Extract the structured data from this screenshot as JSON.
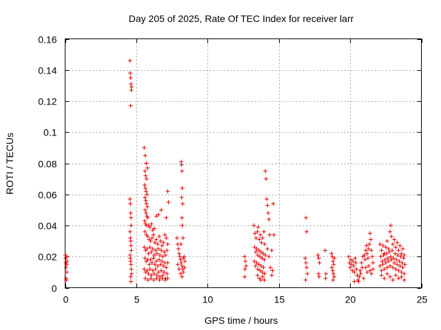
{
  "chart_data": {
    "type": "scatter",
    "title": "Day 205 of 2025, Rate Of TEC Index for receiver larr",
    "xlabel": "GPS time / hours",
    "ylabel": "ROTI / TECUs",
    "xlim": [
      0,
      25
    ],
    "ylim": [
      0,
      0.16
    ],
    "xticks": [
      0,
      5,
      10,
      15,
      20,
      25
    ],
    "yticks": [
      0,
      0.02,
      0.04,
      0.06,
      0.08,
      0.1,
      0.12,
      0.14,
      0.16
    ],
    "xtick_labels": [
      "0",
      "5",
      "10",
      "15",
      "20",
      "25"
    ],
    "ytick_labels": [
      "0",
      "0.02",
      "0.04",
      "0.06",
      "0.08",
      "0.1",
      "0.12",
      "0.14",
      "0.16"
    ],
    "grid": true,
    "marker": "+",
    "marker_color": "#e00000",
    "points": [
      [
        0.02,
        0.021
      ],
      [
        0.04,
        0.019
      ],
      [
        0.05,
        0.016
      ],
      [
        0.06,
        0.013
      ],
      [
        0.07,
        0.006
      ],
      [
        0.09,
        0.005
      ],
      [
        0.1,
        0.015
      ],
      [
        0.11,
        0.02
      ],
      [
        0.12,
        0.01
      ],
      [
        0.13,
        0.017
      ],
      [
        4.55,
        0.146
      ],
      [
        4.57,
        0.138
      ],
      [
        4.6,
        0.135
      ],
      [
        4.62,
        0.131
      ],
      [
        4.64,
        0.127
      ],
      [
        4.66,
        0.129
      ],
      [
        4.6,
        0.117
      ],
      [
        4.55,
        0.057
      ],
      [
        4.58,
        0.054
      ],
      [
        4.6,
        0.048
      ],
      [
        4.62,
        0.045
      ],
      [
        4.63,
        0.04
      ],
      [
        4.56,
        0.036
      ],
      [
        4.58,
        0.032
      ],
      [
        4.6,
        0.03
      ],
      [
        4.62,
        0.027
      ],
      [
        4.64,
        0.024
      ],
      [
        4.56,
        0.021
      ],
      [
        4.58,
        0.019
      ],
      [
        4.6,
        0.017
      ],
      [
        4.62,
        0.015
      ],
      [
        4.64,
        0.012
      ],
      [
        4.66,
        0.009
      ],
      [
        4.6,
        0.007
      ],
      [
        4.62,
        0.004
      ],
      [
        5.55,
        0.09
      ],
      [
        5.62,
        0.085
      ],
      [
        5.7,
        0.08
      ],
      [
        5.78,
        0.077
      ],
      [
        5.6,
        0.075
      ],
      [
        5.65,
        0.072
      ],
      [
        5.72,
        0.07
      ],
      [
        5.58,
        0.066
      ],
      [
        5.63,
        0.064
      ],
      [
        5.68,
        0.062
      ],
      [
        5.75,
        0.06
      ],
      [
        5.6,
        0.058
      ],
      [
        5.66,
        0.056
      ],
      [
        5.7,
        0.054
      ],
      [
        5.78,
        0.052
      ],
      [
        5.62,
        0.05
      ],
      [
        5.68,
        0.048
      ],
      [
        5.74,
        0.046
      ],
      [
        5.8,
        0.045
      ],
      [
        5.58,
        0.043
      ],
      [
        5.64,
        0.041
      ],
      [
        5.72,
        0.04
      ],
      [
        5.85,
        0.04
      ],
      [
        5.95,
        0.039
      ],
      [
        6.05,
        0.041
      ],
      [
        6.15,
        0.037
      ],
      [
        6.25,
        0.038
      ],
      [
        6.4,
        0.046
      ],
      [
        6.55,
        0.047
      ],
      [
        6.75,
        0.05
      ],
      [
        5.6,
        0.036
      ],
      [
        5.7,
        0.034
      ],
      [
        5.8,
        0.033
      ],
      [
        5.9,
        0.031
      ],
      [
        6.0,
        0.03
      ],
      [
        6.1,
        0.032
      ],
      [
        6.2,
        0.034
      ],
      [
        6.3,
        0.029
      ],
      [
        6.4,
        0.031
      ],
      [
        6.5,
        0.028
      ],
      [
        6.6,
        0.033
      ],
      [
        6.7,
        0.03
      ],
      [
        6.8,
        0.027
      ],
      [
        6.9,
        0.029
      ],
      [
        7.0,
        0.034
      ],
      [
        7.1,
        0.032
      ],
      [
        7.2,
        0.028
      ],
      [
        5.55,
        0.026
      ],
      [
        5.65,
        0.024
      ],
      [
        5.75,
        0.025
      ],
      [
        5.85,
        0.022
      ],
      [
        5.95,
        0.026
      ],
      [
        6.05,
        0.023
      ],
      [
        6.15,
        0.025
      ],
      [
        6.25,
        0.021
      ],
      [
        6.35,
        0.024
      ],
      [
        6.45,
        0.022
      ],
      [
        6.55,
        0.025
      ],
      [
        6.65,
        0.021
      ],
      [
        6.75,
        0.024
      ],
      [
        6.85,
        0.02
      ],
      [
        6.95,
        0.023
      ],
      [
        7.05,
        0.021
      ],
      [
        7.15,
        0.024
      ],
      [
        5.6,
        0.019
      ],
      [
        5.7,
        0.017
      ],
      [
        5.8,
        0.018
      ],
      [
        5.9,
        0.015
      ],
      [
        6.0,
        0.018
      ],
      [
        6.1,
        0.016
      ],
      [
        6.2,
        0.019
      ],
      [
        6.3,
        0.015
      ],
      [
        6.4,
        0.017
      ],
      [
        6.5,
        0.014
      ],
      [
        6.6,
        0.018
      ],
      [
        6.7,
        0.015
      ],
      [
        6.8,
        0.017
      ],
      [
        6.9,
        0.014
      ],
      [
        7.0,
        0.016
      ],
      [
        7.1,
        0.013
      ],
      [
        7.2,
        0.016
      ],
      [
        5.55,
        0.012
      ],
      [
        5.65,
        0.01
      ],
      [
        5.75,
        0.011
      ],
      [
        5.85,
        0.009
      ],
      [
        5.95,
        0.012
      ],
      [
        6.05,
        0.008
      ],
      [
        6.15,
        0.011
      ],
      [
        6.25,
        0.009
      ],
      [
        6.35,
        0.012
      ],
      [
        6.45,
        0.008
      ],
      [
        6.55,
        0.01
      ],
      [
        6.65,
        0.007
      ],
      [
        6.75,
        0.011
      ],
      [
        6.85,
        0.008
      ],
      [
        6.95,
        0.01
      ],
      [
        7.05,
        0.006
      ],
      [
        7.15,
        0.009
      ],
      [
        5.62,
        0.006
      ],
      [
        5.82,
        0.005
      ],
      [
        6.02,
        0.006
      ],
      [
        6.22,
        0.005
      ],
      [
        6.42,
        0.006
      ],
      [
        6.62,
        0.005
      ],
      [
        6.82,
        0.006
      ],
      [
        7.02,
        0.005
      ],
      [
        7.2,
        0.006
      ],
      [
        7.2,
        0.062
      ],
      [
        7.25,
        0.055
      ],
      [
        7.1,
        0.045
      ],
      [
        7.85,
        0.032
      ],
      [
        7.9,
        0.028
      ],
      [
        7.95,
        0.025
      ],
      [
        8.0,
        0.022
      ],
      [
        8.05,
        0.02
      ],
      [
        8.1,
        0.018
      ],
      [
        8.15,
        0.016
      ],
      [
        8.2,
        0.014
      ],
      [
        8.25,
        0.012
      ],
      [
        8.3,
        0.01
      ],
      [
        8.35,
        0.02
      ],
      [
        8.4,
        0.017
      ],
      [
        7.9,
        0.015
      ],
      [
        8.0,
        0.012
      ],
      [
        8.1,
        0.009
      ],
      [
        8.2,
        0.007
      ],
      [
        8.3,
        0.019
      ],
      [
        8.38,
        0.013
      ],
      [
        8.15,
        0.081
      ],
      [
        8.17,
        0.079
      ],
      [
        8.2,
        0.075
      ],
      [
        8.22,
        0.064
      ],
      [
        8.18,
        0.058
      ],
      [
        8.25,
        0.054
      ],
      [
        8.2,
        0.045
      ],
      [
        8.22,
        0.04
      ],
      [
        8.28,
        0.032
      ],
      [
        8.12,
        0.028
      ],
      [
        12.6,
        0.02
      ],
      [
        12.65,
        0.017
      ],
      [
        12.7,
        0.014
      ],
      [
        12.62,
        0.012
      ],
      [
        12.6,
        0.007
      ],
      [
        13.25,
        0.04
      ],
      [
        13.32,
        0.035
      ],
      [
        13.4,
        0.032
      ],
      [
        13.5,
        0.036
      ],
      [
        13.55,
        0.039
      ],
      [
        13.62,
        0.031
      ],
      [
        13.7,
        0.034
      ],
      [
        13.78,
        0.029
      ],
      [
        13.85,
        0.032
      ],
      [
        13.95,
        0.036
      ],
      [
        14.0,
        0.028
      ],
      [
        13.3,
        0.026
      ],
      [
        13.38,
        0.023
      ],
      [
        13.45,
        0.025
      ],
      [
        13.52,
        0.021
      ],
      [
        13.6,
        0.024
      ],
      [
        13.68,
        0.02
      ],
      [
        13.75,
        0.023
      ],
      [
        13.82,
        0.019
      ],
      [
        13.9,
        0.022
      ],
      [
        13.98,
        0.018
      ],
      [
        14.05,
        0.021
      ],
      [
        13.28,
        0.017
      ],
      [
        13.36,
        0.014
      ],
      [
        13.44,
        0.016
      ],
      [
        13.52,
        0.012
      ],
      [
        13.6,
        0.015
      ],
      [
        13.68,
        0.011
      ],
      [
        13.76,
        0.014
      ],
      [
        13.84,
        0.01
      ],
      [
        13.92,
        0.013
      ],
      [
        14.0,
        0.009
      ],
      [
        13.5,
        0.008
      ],
      [
        13.62,
        0.006
      ],
      [
        13.74,
        0.005
      ],
      [
        13.86,
        0.007
      ],
      [
        13.98,
        0.005
      ],
      [
        14.05,
        0.075
      ],
      [
        14.1,
        0.07
      ],
      [
        14.15,
        0.057
      ],
      [
        14.2,
        0.053
      ],
      [
        14.25,
        0.048
      ],
      [
        14.3,
        0.044
      ],
      [
        14.35,
        0.034
      ],
      [
        14.2,
        0.025
      ],
      [
        14.3,
        0.02
      ],
      [
        14.4,
        0.013
      ],
      [
        14.5,
        0.008
      ],
      [
        14.6,
        0.054
      ],
      [
        14.65,
        0.034
      ],
      [
        14.5,
        0.024
      ],
      [
        14.55,
        0.011
      ],
      [
        16.9,
        0.045
      ],
      [
        16.95,
        0.036
      ],
      [
        16.85,
        0.019
      ],
      [
        16.9,
        0.016
      ],
      [
        16.95,
        0.013
      ],
      [
        17.0,
        0.009
      ],
      [
        16.88,
        0.005
      ],
      [
        17.75,
        0.021
      ],
      [
        17.8,
        0.019
      ],
      [
        17.85,
        0.016
      ],
      [
        17.78,
        0.009
      ],
      [
        17.82,
        0.007
      ],
      [
        18.25,
        0.024
      ],
      [
        18.3,
        0.009
      ],
      [
        18.28,
        0.006
      ],
      [
        18.7,
        0.022
      ],
      [
        18.75,
        0.02
      ],
      [
        18.8,
        0.017
      ],
      [
        18.85,
        0.015
      ],
      [
        18.72,
        0.013
      ],
      [
        18.78,
        0.011
      ],
      [
        18.83,
        0.009
      ],
      [
        18.88,
        0.007
      ],
      [
        18.8,
        0.005
      ],
      [
        18.9,
        0.019
      ],
      [
        19.9,
        0.02
      ],
      [
        19.95,
        0.016
      ],
      [
        20.0,
        0.013
      ],
      [
        20.05,
        0.018
      ],
      [
        20.1,
        0.015
      ],
      [
        20.15,
        0.011
      ],
      [
        20.2,
        0.017
      ],
      [
        20.25,
        0.014
      ],
      [
        20.3,
        0.01
      ],
      [
        20.35,
        0.019
      ],
      [
        20.4,
        0.016
      ],
      [
        20.45,
        0.012
      ],
      [
        20.5,
        0.008
      ],
      [
        20.55,
        0.005
      ],
      [
        20.6,
        0.004
      ],
      [
        20.65,
        0.007
      ],
      [
        20.3,
        0.004
      ],
      [
        20.7,
        0.011
      ],
      [
        20.8,
        0.016
      ],
      [
        20.9,
        0.02
      ],
      [
        20.75,
        0.009
      ],
      [
        20.85,
        0.013
      ],
      [
        20.95,
        0.006
      ],
      [
        21.0,
        0.021
      ],
      [
        21.05,
        0.018
      ],
      [
        21.1,
        0.024
      ],
      [
        21.15,
        0.027
      ],
      [
        21.2,
        0.022
      ],
      [
        21.25,
        0.019
      ],
      [
        21.3,
        0.025
      ],
      [
        21.35,
        0.028
      ],
      [
        21.4,
        0.035
      ],
      [
        21.45,
        0.031
      ],
      [
        21.5,
        0.024
      ],
      [
        21.55,
        0.02
      ],
      [
        21.6,
        0.016
      ],
      [
        21.1,
        0.013
      ],
      [
        21.2,
        0.01
      ],
      [
        21.3,
        0.014
      ],
      [
        21.4,
        0.011
      ],
      [
        21.5,
        0.009
      ],
      [
        21.6,
        0.012
      ],
      [
        22.1,
        0.028
      ],
      [
        22.2,
        0.024
      ],
      [
        22.3,
        0.027
      ],
      [
        22.4,
        0.022
      ],
      [
        22.5,
        0.026
      ],
      [
        22.6,
        0.03
      ],
      [
        22.7,
        0.025
      ],
      [
        22.8,
        0.036
      ],
      [
        22.85,
        0.04
      ],
      [
        22.9,
        0.033
      ],
      [
        23.0,
        0.028
      ],
      [
        23.1,
        0.031
      ],
      [
        23.2,
        0.026
      ],
      [
        23.3,
        0.029
      ],
      [
        23.4,
        0.024
      ],
      [
        23.5,
        0.027
      ],
      [
        23.6,
        0.022
      ],
      [
        23.7,
        0.025
      ],
      [
        23.8,
        0.021
      ],
      [
        22.15,
        0.02
      ],
      [
        22.25,
        0.017
      ],
      [
        22.35,
        0.021
      ],
      [
        22.45,
        0.018
      ],
      [
        22.55,
        0.022
      ],
      [
        22.65,
        0.019
      ],
      [
        22.75,
        0.023
      ],
      [
        22.85,
        0.02
      ],
      [
        22.95,
        0.024
      ],
      [
        23.05,
        0.019
      ],
      [
        23.15,
        0.022
      ],
      [
        23.25,
        0.018
      ],
      [
        23.35,
        0.021
      ],
      [
        23.45,
        0.017
      ],
      [
        23.55,
        0.02
      ],
      [
        23.65,
        0.016
      ],
      [
        23.75,
        0.019
      ],
      [
        23.85,
        0.015
      ],
      [
        22.1,
        0.014
      ],
      [
        22.2,
        0.011
      ],
      [
        22.3,
        0.015
      ],
      [
        22.4,
        0.012
      ],
      [
        22.5,
        0.016
      ],
      [
        22.6,
        0.013
      ],
      [
        22.7,
        0.017
      ],
      [
        22.8,
        0.014
      ],
      [
        22.9,
        0.018
      ],
      [
        23.0,
        0.013
      ],
      [
        23.1,
        0.016
      ],
      [
        23.2,
        0.012
      ],
      [
        23.3,
        0.015
      ],
      [
        23.4,
        0.011
      ],
      [
        23.5,
        0.014
      ],
      [
        23.6,
        0.01
      ],
      [
        23.7,
        0.013
      ],
      [
        23.8,
        0.009
      ],
      [
        22.2,
        0.008
      ],
      [
        22.4,
        0.006
      ],
      [
        22.6,
        0.009
      ],
      [
        22.8,
        0.007
      ],
      [
        23.0,
        0.005
      ],
      [
        23.2,
        0.008
      ],
      [
        23.4,
        0.006
      ],
      [
        23.6,
        0.007
      ],
      [
        23.8,
        0.005
      ]
    ]
  }
}
